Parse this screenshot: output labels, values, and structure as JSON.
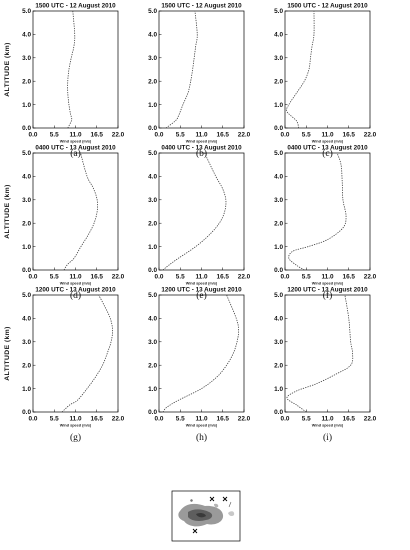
{
  "ylabel": "ALTITUDE (km)",
  "xlabel": "Wind speed (m/s)",
  "chart_data": [
    {
      "type": "line",
      "label": "(a)",
      "title": "1500 UTC - 12 August 2010",
      "xlim": [
        0,
        22
      ],
      "ylim": [
        0,
        5
      ],
      "xticks": [
        "0.0",
        "5.5",
        "11.0",
        "16.5",
        "22.0"
      ],
      "yticks": [
        "0.0",
        "1.0",
        "2.0",
        "3.0",
        "4.0",
        "5.0"
      ],
      "series": [
        {
          "x": [
            9.0,
            10.0,
            9.7,
            9.3,
            9.0,
            9.0,
            9.3,
            9.9,
            10.6,
            10.8,
            10.3
          ],
          "y": [
            0.0,
            0.35,
            0.6,
            1.0,
            1.5,
            2.0,
            2.5,
            3.0,
            3.5,
            4.0,
            5.0
          ]
        }
      ]
    },
    {
      "type": "line",
      "label": "(d)",
      "title": "0400 UTC - 13 August 2010",
      "xlim": [
        0,
        22
      ],
      "ylim": [
        0,
        5
      ],
      "xticks": [
        "0.0",
        "5.5",
        "11.0",
        "16.5",
        "22.0"
      ],
      "yticks": [
        "0.0",
        "1.0",
        "2.0",
        "3.0",
        "4.0",
        "5.0"
      ],
      "series": [
        {
          "x": [
            8.0,
            9.0,
            10.6,
            12.4,
            14.3,
            15.8,
            16.6,
            16.6,
            15.6,
            14.0,
            12.3
          ],
          "y": [
            0.0,
            0.25,
            0.5,
            1.0,
            1.5,
            2.0,
            2.5,
            3.0,
            3.5,
            4.0,
            5.0
          ]
        }
      ]
    },
    {
      "type": "line",
      "label": "(g)",
      "title": "1200 UTC - 13 August 2010",
      "xlim": [
        0,
        22
      ],
      "ylim": [
        0,
        5
      ],
      "xticks": [
        "0.0",
        "5.5",
        "11.0",
        "16.5",
        "22.0"
      ],
      "yticks": [
        "0.0",
        "1.0",
        "2.0",
        "3.0",
        "4.0",
        "5.0"
      ],
      "series": [
        {
          "x": [
            7.5,
            9.5,
            11.5,
            14.0,
            16.2,
            18.0,
            19.2,
            20.2,
            20.6,
            20.0,
            18.6,
            17.0
          ],
          "y": [
            0.0,
            0.3,
            0.5,
            1.0,
            1.5,
            2.0,
            2.5,
            3.0,
            3.5,
            4.0,
            4.5,
            5.0
          ]
        }
      ]
    },
    {
      "type": "line",
      "label": "(b)",
      "title": "1500 UTC - 12 August 2010",
      "xlim": [
        0,
        22
      ],
      "ylim": [
        0,
        5
      ],
      "xticks": [
        "0.0",
        "5.5",
        "11.0",
        "16.5",
        "22.0"
      ],
      "yticks": [
        "0.0",
        "1.0",
        "2.0",
        "3.0",
        "4.0",
        "5.0"
      ],
      "series": [
        {
          "x": [
            1.8,
            4.2,
            5.0,
            6.2,
            7.5,
            8.2,
            8.7,
            9.1,
            9.5,
            9.9,
            9.3
          ],
          "y": [
            0.0,
            0.3,
            0.5,
            1.0,
            1.5,
            2.0,
            2.5,
            3.0,
            3.5,
            4.0,
            5.0
          ]
        }
      ]
    },
    {
      "type": "line",
      "label": "(e)",
      "title": "0400 UTC - 13 August 2010",
      "xlim": [
        0,
        22
      ],
      "ylim": [
        0,
        5
      ],
      "xticks": [
        "0.0",
        "5.5",
        "11.0",
        "16.5",
        "22.0"
      ],
      "yticks": [
        "0.0",
        "1.0",
        "2.0",
        "3.0",
        "4.0",
        "5.0"
      ],
      "series": [
        {
          "x": [
            1.0,
            2.5,
            5.0,
            9.5,
            13.0,
            15.6,
            17.0,
            17.3,
            16.4,
            14.7,
            11.8
          ],
          "y": [
            0.0,
            0.2,
            0.5,
            1.0,
            1.5,
            2.0,
            2.5,
            3.0,
            3.5,
            4.0,
            5.0
          ]
        }
      ]
    },
    {
      "type": "line",
      "label": "(h)",
      "title": "1200 UTC - 13 August 2010",
      "xlim": [
        0,
        22
      ],
      "ylim": [
        0,
        5
      ],
      "xticks": [
        "0.0",
        "5.5",
        "11.0",
        "16.5",
        "22.0"
      ],
      "yticks": [
        "0.0",
        "1.0",
        "2.0",
        "3.0",
        "4.0",
        "5.0"
      ],
      "series": [
        {
          "x": [
            1.0,
            2.0,
            5.0,
            11.0,
            15.0,
            17.5,
            19.2,
            20.2,
            20.6,
            20.0,
            17.5
          ],
          "y": [
            0.0,
            0.2,
            0.5,
            1.0,
            1.5,
            2.0,
            2.5,
            3.0,
            3.5,
            4.0,
            5.0
          ]
        }
      ]
    },
    {
      "type": "line",
      "label": "(c)",
      "title": "1500 UTC - 12 August 2010",
      "xlim": [
        0,
        22
      ],
      "ylim": [
        0,
        5
      ],
      "xticks": [
        "0.0",
        "5.5",
        "11.0",
        "16.5",
        "22.0"
      ],
      "yticks": [
        "0.0",
        "1.0",
        "2.0",
        "3.0",
        "4.0",
        "5.0"
      ],
      "series": [
        {
          "x": [
            3.5,
            3.0,
            0.5,
            1.0,
            3.0,
            5.0,
            6.2,
            6.6,
            7.0,
            7.5,
            7.5
          ],
          "y": [
            0.0,
            0.3,
            0.7,
            1.0,
            1.5,
            2.0,
            2.5,
            3.0,
            3.5,
            4.0,
            5.0
          ]
        }
      ]
    },
    {
      "type": "line",
      "label": "(f)",
      "title": "0400 UTC - 13 August 2010",
      "xlim": [
        0,
        22
      ],
      "ylim": [
        0,
        5
      ],
      "xticks": [
        "0.0",
        "5.5",
        "11.0",
        "16.5",
        "22.0"
      ],
      "yticks": [
        "0.0",
        "1.0",
        "2.0",
        "3.0",
        "4.0",
        "5.0"
      ],
      "series": [
        {
          "x": [
            5.0,
            3.0,
            1.0,
            2.0,
            6.0,
            11.0,
            15.0,
            15.8,
            15.0,
            14.8,
            14.5,
            13.5
          ],
          "y": [
            0.0,
            0.2,
            0.5,
            0.8,
            1.0,
            1.3,
            1.8,
            2.3,
            3.0,
            3.8,
            4.5,
            5.0
          ]
        }
      ]
    },
    {
      "type": "line",
      "label": "(i)",
      "title": "1200 UTC - 13 August 2010",
      "xlim": [
        0,
        22
      ],
      "ylim": [
        0,
        5
      ],
      "xticks": [
        "0.0",
        "5.5",
        "11.0",
        "16.5",
        "22.0"
      ],
      "yticks": [
        "0.0",
        "1.0",
        "2.0",
        "3.0",
        "4.0",
        "5.0"
      ],
      "series": [
        {
          "x": [
            5.5,
            3.0,
            0.5,
            3.0,
            8.0,
            13.0,
            17.0,
            17.5,
            17.0,
            16.5,
            15.5
          ],
          "y": [
            0.0,
            0.3,
            0.6,
            0.9,
            1.2,
            1.6,
            2.0,
            2.5,
            3.0,
            4.0,
            5.0
          ]
        }
      ]
    }
  ]
}
